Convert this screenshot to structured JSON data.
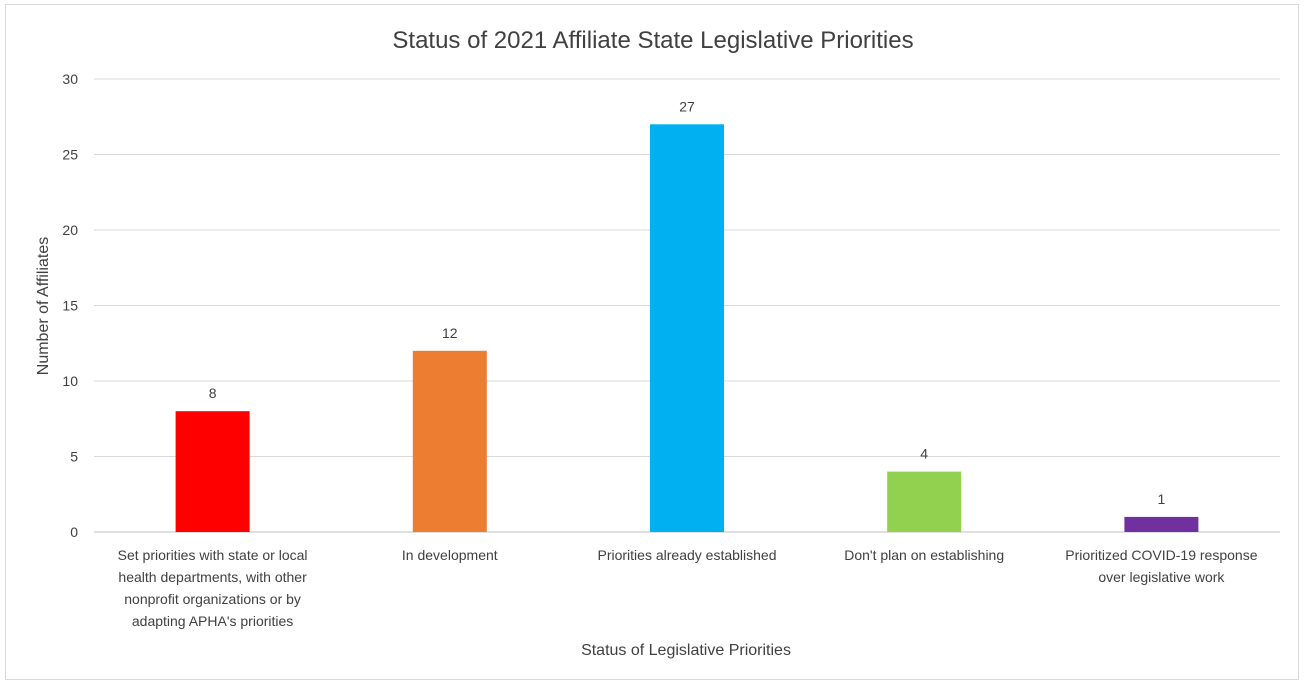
{
  "chart_data": {
    "type": "bar",
    "title": "Status of 2021 Affiliate State Legislative Priorities",
    "xlabel": "Status of Legislative Priorities",
    "ylabel": "Number of Affiliates",
    "ylim": [
      0,
      30
    ],
    "yticks": [
      0,
      5,
      10,
      15,
      20,
      25,
      30
    ],
    "grid": true,
    "legend": "none",
    "categories": [
      [
        "Set priorities with state or local",
        "health departments, with other",
        "nonprofit organizations or by",
        "adapting APHA's priorities"
      ],
      [
        "In development"
      ],
      [
        "Priorities already established"
      ],
      [
        "Don't plan on establishing"
      ],
      [
        "Prioritized  COVID-19 response",
        "over legislative work"
      ]
    ],
    "values": [
      8,
      12,
      27,
      4,
      1
    ],
    "colors": [
      "#ff0000",
      "#ed7d31",
      "#00b0f0",
      "#92d050",
      "#7030a0"
    ]
  }
}
